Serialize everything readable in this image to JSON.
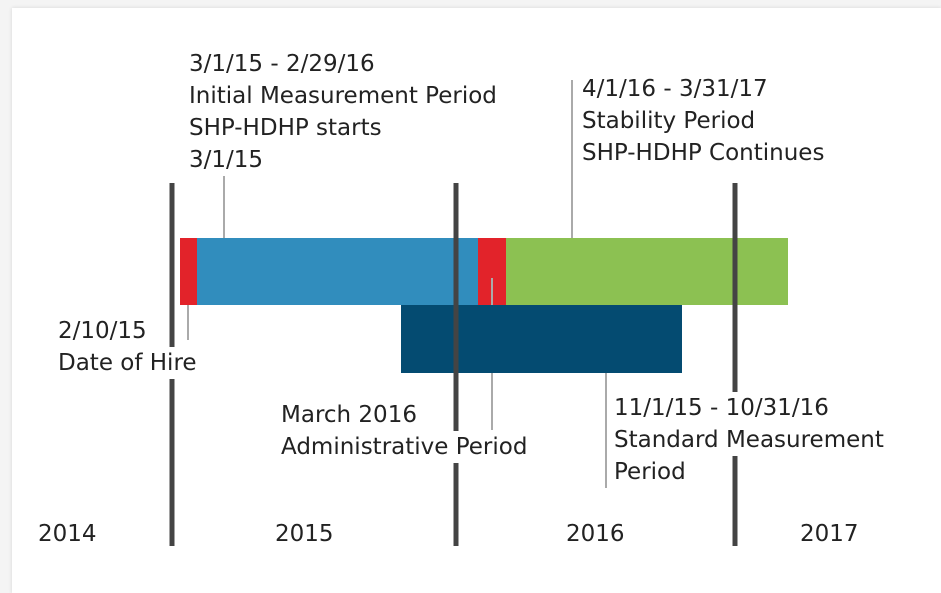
{
  "years": [
    "2014",
    "2015",
    "2016",
    "2017"
  ],
  "annotations": [
    {
      "lines": [
        "3/1/15 - 2/29/16",
        "Initial Measurement Period",
        "SHP-HDHP starts",
        "3/1/15"
      ]
    },
    {
      "lines": [
        "4/1/16 - 3/31/17",
        "Stability Period",
        "SHP-HDHP Continues"
      ]
    },
    {
      "lines": [
        "2/10/15",
        "Date of Hire"
      ]
    },
    {
      "lines": [
        "March 2016",
        "Administrative Period"
      ]
    },
    {
      "lines": [
        "11/1/15 - 10/31/16",
        "Standard Measurement",
        "Period"
      ]
    }
  ]
}
